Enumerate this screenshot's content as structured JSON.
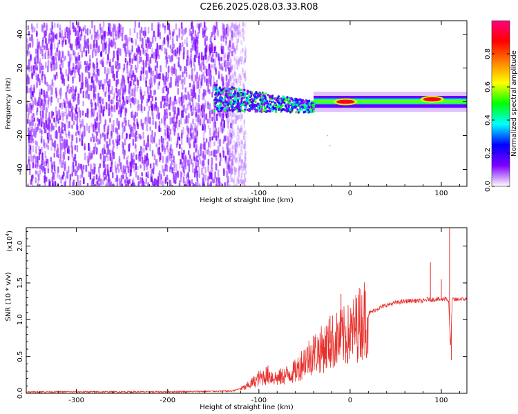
{
  "title": "C2E6.2025.028.03.33.R08",
  "chart_data": [
    {
      "type": "heatmap",
      "xlabel": "Height of straight line (km)",
      "ylabel": "Frequency (Hz)",
      "xlim": [
        -355,
        128
      ],
      "ylim": [
        -50,
        48
      ],
      "xticks": [
        -300,
        -200,
        -100,
        0,
        100
      ],
      "yticks": [
        -40,
        -20,
        0,
        20,
        40
      ],
      "colorbar": {
        "label": "Normalized spectral amplitude",
        "range": [
          0,
          1
        ],
        "ticks": [
          "0.0",
          "0.2",
          "0.4",
          "0.6",
          "0.8"
        ],
        "tick_values": [
          0,
          0.2,
          0.4,
          0.6,
          0.8
        ],
        "colors": [
          "#ffffff",
          "#7f00ff",
          "#0000ff",
          "#00ffff",
          "#00ff00",
          "#ffff00",
          "#ff8000",
          "#ff0000",
          "#ff0080"
        ]
      },
      "regions": [
        {
          "x": [
            -355,
            -130
          ],
          "y": [
            -50,
            48
          ],
          "level": 0.12
        },
        {
          "x": [
            -150,
            -40
          ],
          "y": [
            -8,
            8
          ],
          "level": 0.35
        },
        {
          "x": [
            -40,
            128
          ],
          "y": [
            -2,
            2
          ],
          "level": 0.5
        },
        {
          "x": [
            -15,
            5
          ],
          "y": [
            -1,
            1
          ],
          "level": 0.9
        },
        {
          "x": [
            80,
            100
          ],
          "y": [
            0,
            3
          ],
          "level": 0.9
        }
      ]
    },
    {
      "type": "line",
      "xlabel": "Height of straight line (km)",
      "ylabel": "SNR (10 * v/v)",
      "yscale_label": "(x10",
      "yscale_exp": "4",
      "yscale_close": ")",
      "xlim": [
        -355,
        128
      ],
      "ylim": [
        0,
        2.25
      ],
      "xticks": [
        -300,
        -200,
        -100,
        0,
        100
      ],
      "yticks": [
        "0.0",
        "0.5",
        "1.0",
        "1.5",
        "2.0"
      ],
      "ytick_values": [
        0,
        0.5,
        1.0,
        1.5,
        2.0
      ],
      "color": "#e8302c",
      "series": [
        {
          "x": [
            -355,
            -200,
            -130,
            -115,
            -100,
            -90,
            -80,
            -70,
            -60,
            -50,
            -40,
            -30,
            -20,
            -10,
            0,
            10,
            20,
            30,
            40,
            50,
            60,
            70,
            80,
            85,
            90,
            95,
            100,
            105,
            108,
            110,
            112,
            115,
            120,
            128
          ],
          "y": [
            0.02,
            0.02,
            0.03,
            0.08,
            0.2,
            0.25,
            0.2,
            0.25,
            0.3,
            0.45,
            0.55,
            0.6,
            0.7,
            0.75,
            0.8,
            0.95,
            1.08,
            1.15,
            1.2,
            1.23,
            1.25,
            1.26,
            1.25,
            1.28,
            1.27,
            1.28,
            1.27,
            1.3,
            1.25,
            0.6,
            1.28,
            1.27,
            1.28,
            1.28
          ]
        }
      ],
      "spikes": [
        {
          "x": -10,
          "y": 1.35
        },
        {
          "x": -22,
          "y": 1.05
        },
        {
          "x": -40,
          "y": 0.78
        },
        {
          "x": 88,
          "y": 1.78
        },
        {
          "x": 100,
          "y": 1.55
        },
        {
          "x": 109,
          "y": 2.25
        },
        {
          "x": 111,
          "y": 0.45
        }
      ]
    }
  ]
}
